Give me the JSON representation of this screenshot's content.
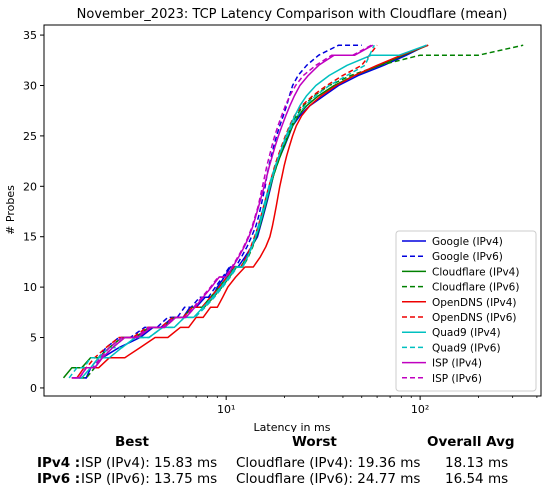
{
  "chart_data": {
    "type": "line",
    "title": "November_2023: TCP Latency Comparison with Cloudflare (mean)",
    "xlabel": "Latency in ms",
    "ylabel": "# Probes",
    "xscale": "log",
    "xlim": [
      1.15,
      420
    ],
    "ylim": [
      -0.8,
      36
    ],
    "xticks": [
      {
        "value": 10,
        "label": "10¹"
      },
      {
        "value": 100,
        "label": "10²"
      }
    ],
    "yticks": [
      0,
      5,
      10,
      15,
      20,
      25,
      30,
      35
    ],
    "grid": false,
    "legend": "bottom-right",
    "series": [
      {
        "name": "Google (IPv4)",
        "color": "#0000dd",
        "dash": false,
        "x": [
          1.75,
          1.9,
          2.0,
          2.1,
          2.3,
          2.8,
          3.6,
          4.2,
          4.6,
          5.3,
          6.0,
          6.5,
          7.0,
          7.8,
          8.5,
          9.0,
          9.8,
          10.5,
          11.5,
          12.5,
          13.5,
          14.5,
          15.0,
          15.5,
          16.0,
          16.5,
          17.0,
          17.5,
          18.0,
          19.0,
          20.0,
          21.0,
          22.0,
          24.0,
          27.0,
          32.0,
          38.0,
          48.0,
          65.0,
          85.0,
          108.0
        ],
        "y": [
          1,
          1,
          2,
          2,
          3,
          4,
          5,
          6,
          6,
          7,
          7,
          8,
          8,
          9,
          9,
          10,
          11,
          12,
          12,
          13,
          14,
          15,
          16,
          17,
          18,
          19,
          20,
          21,
          22,
          23,
          24,
          25,
          26,
          27,
          28,
          29,
          30,
          31,
          32,
          33,
          34
        ]
      },
      {
        "name": "Google (IPv6)",
        "color": "#0000dd",
        "dash": true,
        "x": [
          1.7,
          1.9,
          2.0,
          2.2,
          2.4,
          2.8,
          3.2,
          3.8,
          4.4,
          5.0,
          5.6,
          6.1,
          6.6,
          7.3,
          8.1,
          8.8,
          9.6,
          10.4,
          11.2,
          12.0,
          12.8,
          13.5,
          14.2,
          14.7,
          15.1,
          15.5,
          15.9,
          16.2,
          16.6,
          17.1,
          17.6,
          18.2,
          18.9,
          19.7,
          20.5,
          21.2,
          22.0,
          23.5,
          26.0,
          30.0,
          38.0,
          50.0
        ],
        "y": [
          1,
          1,
          2,
          3,
          4,
          5,
          5,
          6,
          6,
          7,
          7,
          8,
          8,
          9,
          9,
          10,
          11,
          12,
          12,
          13,
          14,
          15,
          16,
          17,
          18,
          19,
          20,
          21,
          22,
          23,
          24,
          25,
          26,
          27,
          28,
          29,
          30,
          31,
          32,
          33,
          34,
          34
        ]
      },
      {
        "name": "Cloudflare (IPv4)",
        "color": "#008000",
        "dash": false,
        "x": [
          1.45,
          1.6,
          1.8,
          2.0,
          2.2,
          2.5,
          2.9,
          3.4,
          4.0,
          4.7,
          5.4,
          6.0,
          6.7,
          7.5,
          8.3,
          9.2,
          10.1,
          11.0,
          11.9,
          12.8,
          13.6,
          14.3,
          14.9,
          15.4,
          15.9,
          16.4,
          16.9,
          17.5,
          18.2,
          19.0,
          19.9,
          20.9,
          22.0,
          23.5,
          26.0,
          30.0,
          36.0,
          46.0,
          62.0,
          82.0,
          110.0
        ],
        "y": [
          1,
          2,
          2,
          3,
          3,
          4,
          5,
          5,
          6,
          6,
          7,
          7,
          8,
          8,
          9,
          10,
          11,
          12,
          12,
          13,
          14,
          15,
          16,
          17,
          18,
          19,
          20,
          21,
          22,
          23,
          24,
          25,
          26,
          27,
          28,
          29,
          30,
          31,
          32,
          33,
          34
        ]
      },
      {
        "name": "Cloudflare (IPv6)",
        "color": "#008000",
        "dash": true,
        "x": [
          1.75,
          1.9,
          2.1,
          2.3,
          2.6,
          3.0,
          3.5,
          4.1,
          4.8,
          5.5,
          6.2,
          6.9,
          7.7,
          8.6,
          9.5,
          10.4,
          11.3,
          12.2,
          13.0,
          13.7,
          14.3,
          14.8,
          15.3,
          15.8,
          16.3,
          16.9,
          17.5,
          18.2,
          19.0,
          19.8,
          20.7,
          21.7,
          23.0,
          25.0,
          28.5,
          34.0,
          44.0,
          62.0,
          100.0,
          200.0,
          340.0
        ],
        "y": [
          1,
          1,
          2,
          3,
          4,
          5,
          5,
          6,
          6,
          7,
          7,
          8,
          8,
          9,
          10,
          11,
          12,
          12,
          13,
          14,
          15,
          16,
          17,
          18,
          19,
          20,
          21,
          22,
          23,
          24,
          25,
          26,
          27,
          28,
          29,
          30,
          31,
          32,
          33,
          33,
          34
        ]
      },
      {
        "name": "OpenDNS (IPv4)",
        "color": "#ee0000",
        "dash": false,
        "x": [
          1.7,
          1.85,
          2.0,
          2.2,
          2.5,
          3.0,
          3.6,
          4.3,
          5.0,
          5.8,
          6.4,
          7.0,
          7.6,
          8.3,
          9.0,
          9.6,
          10.2,
          11.2,
          12.5,
          13.8,
          15.0,
          16.0,
          16.8,
          17.3,
          17.7,
          18.1,
          18.5,
          18.9,
          19.4,
          19.9,
          20.5,
          21.2,
          22.0,
          23.0,
          24.5,
          27.0,
          31.0,
          37.0,
          46.0,
          60.0,
          80.0,
          110.0
        ],
        "y": [
          1,
          2,
          2,
          2,
          3,
          3,
          4,
          5,
          5,
          6,
          6,
          7,
          7,
          8,
          8,
          9,
          10,
          11,
          12,
          12,
          13,
          14,
          15,
          16,
          17,
          18,
          19,
          20,
          21,
          22,
          23,
          24,
          25,
          26,
          27,
          28,
          29,
          30,
          31,
          32,
          33,
          34
        ]
      },
      {
        "name": "OpenDNS (IPv6)",
        "color": "#ee0000",
        "dash": true,
        "x": [
          1.6,
          1.75,
          1.9,
          2.1,
          2.4,
          2.8,
          3.3,
          3.9,
          4.6,
          5.3,
          6.0,
          6.7,
          7.5,
          8.3,
          9.2,
          10.1,
          11.0,
          11.9,
          12.7,
          13.4,
          14.0,
          14.6,
          15.1,
          15.6,
          16.1,
          16.6,
          17.2,
          17.8,
          18.5,
          19.3,
          20.2,
          21.2,
          22.5,
          24.5,
          28.0,
          33.0,
          40.0,
          50.0,
          60.0
        ],
        "y": [
          1,
          1,
          2,
          3,
          4,
          5,
          5,
          6,
          6,
          7,
          7,
          8,
          8,
          9,
          10,
          11,
          12,
          12,
          13,
          14,
          15,
          16,
          17,
          18,
          19,
          20,
          21,
          22,
          23,
          24,
          25,
          26,
          27,
          28,
          29,
          30,
          31,
          32,
          34
        ]
      },
      {
        "name": "Quad9 (IPv4)",
        "color": "#00c0c0",
        "dash": false,
        "x": [
          1.65,
          1.8,
          2.0,
          2.2,
          2.5,
          2.9,
          3.4,
          4.0,
          4.7,
          5.4,
          6.1,
          6.8,
          7.6,
          8.5,
          9.4,
          10.3,
          11.2,
          12.1,
          12.9,
          13.6,
          14.2,
          14.8,
          15.3,
          15.8,
          16.3,
          16.8,
          17.4,
          18.0,
          18.7,
          19.5,
          20.4,
          21.4,
          22.6,
          24.0,
          26.0,
          29.0,
          34.0,
          42.0,
          56.0,
          78.0,
          108.0
        ],
        "y": [
          1,
          1,
          2,
          3,
          3,
          4,
          5,
          5,
          6,
          6,
          7,
          7,
          8,
          9,
          10,
          11,
          12,
          12,
          13,
          14,
          15,
          16,
          17,
          18,
          19,
          20,
          21,
          22,
          23,
          24,
          25,
          26,
          27,
          28,
          29,
          30,
          31,
          32,
          33,
          33,
          34
        ]
      },
      {
        "name": "Quad9 (IPv6)",
        "color": "#00c0c0",
        "dash": true,
        "x": [
          1.55,
          1.7,
          1.85,
          2.0,
          2.2,
          2.5,
          2.9,
          3.4,
          4.0,
          4.7,
          5.4,
          6.1,
          6.9,
          7.8,
          8.7,
          9.6,
          10.5,
          11.4,
          12.2,
          12.9,
          13.5,
          14.1,
          14.6,
          15.1,
          15.6,
          16.1,
          16.6,
          17.2,
          17.9,
          18.7,
          19.6,
          20.6,
          21.8,
          23.3,
          25.5,
          29.0,
          34.0,
          42.0,
          52.0,
          58.0
        ],
        "y": [
          1,
          2,
          2,
          3,
          3,
          4,
          4,
          5,
          5,
          6,
          6,
          7,
          7,
          8,
          9,
          10,
          11,
          12,
          12,
          13,
          14,
          15,
          16,
          17,
          18,
          19,
          20,
          21,
          22,
          23,
          24,
          25,
          26,
          27,
          28,
          29,
          30,
          31,
          32,
          34
        ]
      },
      {
        "name": "ISP (IPv4)",
        "color": "#c000c0",
        "dash": false,
        "x": [
          1.6,
          1.75,
          1.9,
          2.1,
          2.3,
          2.6,
          3.0,
          3.5,
          4.1,
          4.8,
          5.5,
          6.2,
          6.9,
          7.6,
          8.4,
          9.2,
          10.0,
          10.8,
          11.6,
          12.4,
          13.1,
          13.7,
          14.2,
          14.7,
          15.2,
          15.7,
          16.2,
          16.7,
          17.3,
          17.9,
          18.6,
          19.4,
          20.3,
          21.3,
          22.5,
          24.0,
          26.5,
          30.0,
          36.0,
          46.0,
          57.0
        ],
        "y": [
          1,
          1,
          2,
          2,
          3,
          4,
          5,
          5,
          6,
          6,
          7,
          7,
          8,
          9,
          10,
          11,
          11,
          12,
          13,
          14,
          15,
          16,
          17,
          18,
          19,
          20,
          21,
          22,
          23,
          24,
          25,
          26,
          27,
          28,
          29,
          30,
          31,
          32,
          33,
          33,
          34
        ]
      },
      {
        "name": "ISP (IPv6)",
        "color": "#c000c0",
        "dash": true,
        "x": [
          1.6,
          1.75,
          1.9,
          2.05,
          2.25,
          2.5,
          2.9,
          3.4,
          4.0,
          4.7,
          5.4,
          6.1,
          6.8,
          7.5,
          8.3,
          9.1,
          9.9,
          10.7,
          11.5,
          12.3,
          13.0,
          13.6,
          14.1,
          14.6,
          15.0,
          15.4,
          15.8,
          16.2,
          16.7,
          17.2,
          17.8,
          18.5,
          19.3,
          20.2,
          21.3,
          22.8,
          25.0,
          29.0,
          35.0,
          45.0,
          56.0
        ],
        "y": [
          1,
          1,
          2,
          2,
          3,
          4,
          5,
          5,
          6,
          6,
          7,
          7,
          8,
          9,
          10,
          11,
          11,
          12,
          13,
          14,
          15,
          16,
          17,
          18,
          19,
          20,
          21,
          22,
          23,
          24,
          25,
          26,
          27,
          28,
          29,
          30,
          31,
          32,
          33,
          33,
          34
        ]
      }
    ]
  },
  "summary": {
    "headers": {
      "best": "Best",
      "worst": "Worst",
      "overall": "Overall Avg"
    },
    "rows": [
      {
        "label": "IPv4 :",
        "best": "ISP (IPv4): 15.83 ms",
        "worst": "Cloudflare (IPv4): 19.36 ms",
        "overall": "18.13 ms"
      },
      {
        "label": "IPv6 :",
        "best": "ISP (IPv6): 13.75 ms",
        "worst": "Cloudflare (IPv6): 24.77 ms",
        "overall": "16.54 ms"
      }
    ]
  }
}
